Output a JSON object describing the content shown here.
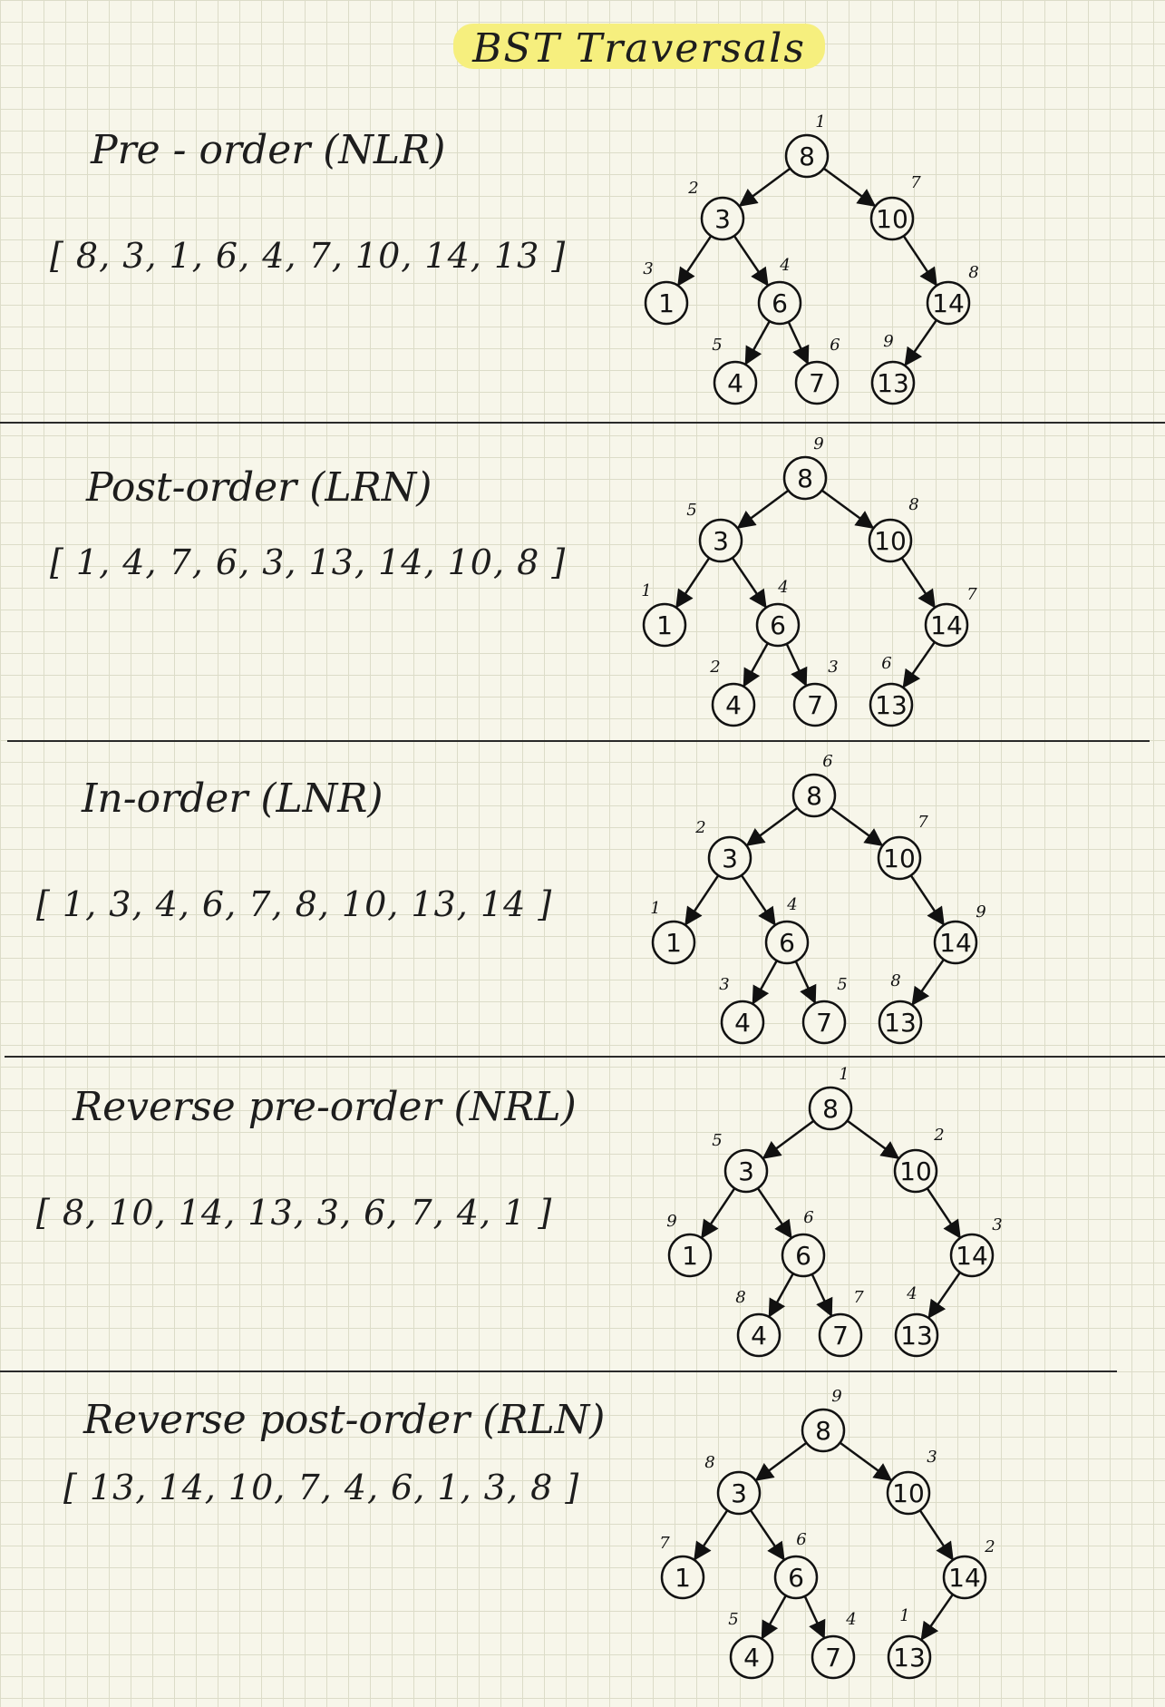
{
  "title": "BST Traversals",
  "tree": {
    "nodes": [
      "8",
      "3",
      "10",
      "1",
      "6",
      "14",
      "4",
      "7",
      "13"
    ],
    "edges": [
      [
        "8",
        "3"
      ],
      [
        "8",
        "10"
      ],
      [
        "3",
        "1"
      ],
      [
        "3",
        "6"
      ],
      [
        "6",
        "4"
      ],
      [
        "6",
        "7"
      ],
      [
        "10",
        "14"
      ],
      [
        "14",
        "13"
      ]
    ]
  },
  "sections": [
    {
      "label": "Pre - order (NLR)",
      "sequence": "[ 8, 3, 1, 6, 4, 7, 10, 14, 13 ]",
      "order": {
        "8": "1",
        "3": "2",
        "1": "3",
        "6": "4",
        "4": "5",
        "7": "6",
        "10": "7",
        "14": "8",
        "13": "9"
      }
    },
    {
      "label": "Post-order (LRN)",
      "sequence": "[ 1, 4, 7, 6, 3, 13, 14, 10, 8 ]",
      "order": {
        "1": "1",
        "4": "2",
        "7": "3",
        "6": "4",
        "3": "5",
        "13": "6",
        "14": "7",
        "10": "8",
        "8": "9"
      }
    },
    {
      "label": "In-order (LNR)",
      "sequence": "[ 1, 3, 4, 6, 7, 8, 10, 13, 14 ]",
      "order": {
        "1": "1",
        "3": "2",
        "4": "3",
        "6": "4",
        "7": "5",
        "8": "6",
        "10": "7",
        "13": "8",
        "14": "9"
      }
    },
    {
      "label": "Reverse pre-order (NRL)",
      "sequence": "[ 8, 10, 14, 13, 3, 6, 7, 4, 1 ]",
      "order": {
        "8": "1",
        "10": "2",
        "14": "3",
        "13": "4",
        "3": "5",
        "6": "6",
        "7": "7",
        "4": "8",
        "1": "9"
      }
    },
    {
      "label": "Reverse post-order (RLN)",
      "sequence": "[ 13, 14, 10, 7, 4, 6, 1, 3, 8 ]",
      "order": {
        "13": "1",
        "14": "2",
        "10": "3",
        "7": "4",
        "4": "5",
        "6": "6",
        "1": "7",
        "3": "8",
        "8": "9"
      }
    }
  ]
}
